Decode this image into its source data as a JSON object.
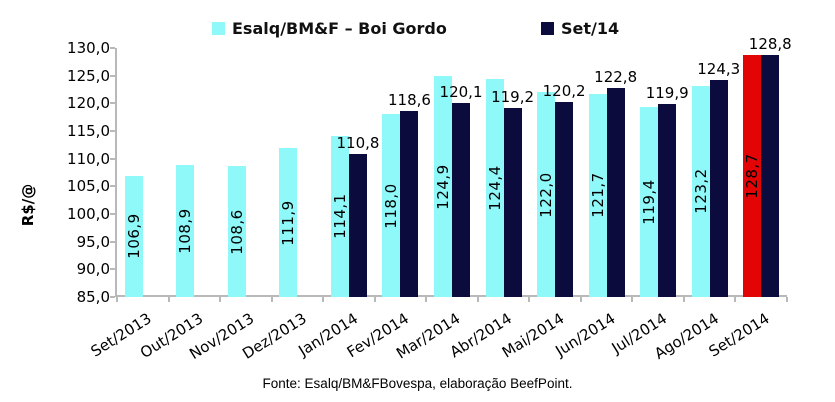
{
  "chart_data": {
    "type": "bar",
    "title": "",
    "xlabel": "",
    "ylabel": "R$/@",
    "ylim": [
      85,
      130
    ],
    "ytick_step": 5,
    "yticks": [
      "130,0",
      "125,0",
      "120,0",
      "115,0",
      "110,0",
      "105,0",
      "100,0",
      "95,0",
      "90,0",
      "85,0"
    ],
    "grid": false,
    "legend_position": "top",
    "categories": [
      "Set/2013",
      "Out/2013",
      "Nov/2013",
      "Dez/2013",
      "Jan/2014",
      "Fev/2014",
      "Mar/2014",
      "Abr/2014",
      "Mai/2014",
      "Jun/2014",
      "Jul/2014",
      "Ago/2014",
      "Set/2014"
    ],
    "series": [
      {
        "name": "Esalq/BM&F – Boi Gordo",
        "color": "#8FF8F8",
        "values": [
          106.9,
          108.9,
          108.6,
          111.9,
          114.1,
          118.0,
          124.9,
          124.4,
          122.0,
          121.7,
          119.4,
          123.2,
          128.7
        ],
        "labels": [
          "106,9",
          "108,9",
          "108,6",
          "111,9",
          "114,1",
          "118,0",
          "124,9",
          "124,4",
          "122,0",
          "121,7",
          "119,4",
          "123,2",
          "128,7"
        ],
        "label_placement": "inside-vertical",
        "highlight_index": 12,
        "highlight_color": "#E30505"
      },
      {
        "name": "Set/14",
        "color": "#0B0B3D",
        "values": [
          null,
          null,
          null,
          null,
          110.8,
          118.6,
          120.1,
          119.2,
          120.2,
          122.8,
          119.9,
          124.3,
          128.8
        ],
        "labels": [
          null,
          null,
          null,
          null,
          "110,8",
          "118,6",
          "120,1",
          "119,2",
          "120,2",
          "122,8",
          "119,9",
          "124,3",
          "128,8"
        ],
        "label_placement": "above-horizontal"
      }
    ],
    "axis_color": "#b9b9b9"
  },
  "footer": {
    "source": "Fonte: Esalq/BM&FBovespa, elaboração BeefPoint."
  }
}
